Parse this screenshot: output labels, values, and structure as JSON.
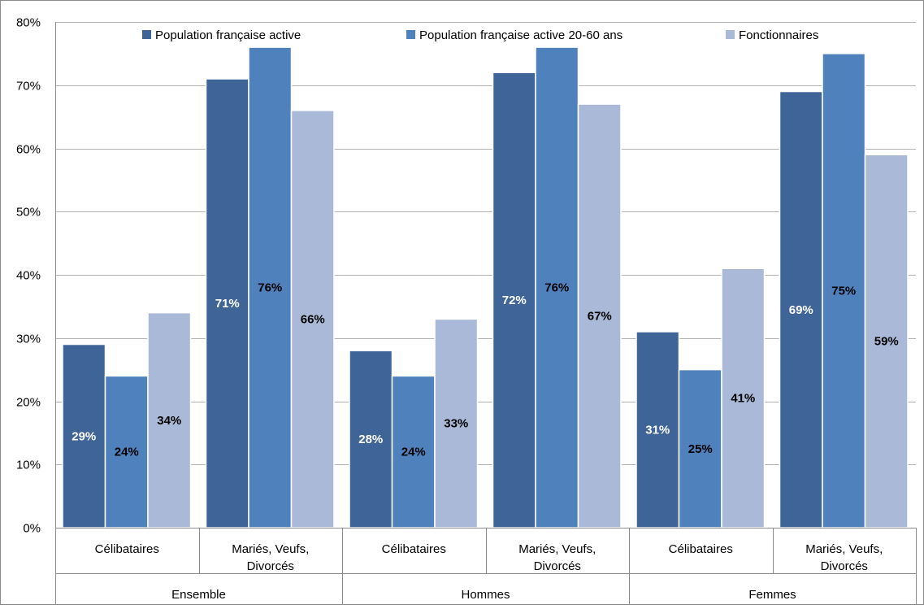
{
  "chart_data": {
    "type": "bar",
    "title": "",
    "xlabel": "",
    "ylabel": "",
    "ylim": [
      0,
      80
    ],
    "y_ticks": [
      "0%",
      "10%",
      "20%",
      "30%",
      "40%",
      "50%",
      "60%",
      "70%",
      "80%"
    ],
    "y_tick_values": [
      0,
      10,
      20,
      30,
      40,
      50,
      60,
      70,
      80
    ],
    "grid": true,
    "legend_position": "top",
    "groups": [
      {
        "label": "Ensemble",
        "categories": [
          "Célibataires",
          "Mariés, Veufs, Divorcés"
        ]
      },
      {
        "label": "Hommes",
        "categories": [
          "Célibataires",
          "Mariés, Veufs, Divorcés"
        ]
      },
      {
        "label": "Femmes",
        "categories": [
          "Célibataires",
          "Mariés, Veufs, Divorcés"
        ]
      }
    ],
    "categories": [
      "Célibataires",
      "Mariés, Veufs, Divorcés",
      "Célibataires",
      "Mariés, Veufs, Divorcés",
      "Célibataires",
      "Mariés, Veufs, Divorcés"
    ],
    "category_lines": [
      [
        "Célibataires"
      ],
      [
        "Mariés, Veufs,",
        "Divorcés"
      ],
      [
        "Célibataires"
      ],
      [
        "Mariés, Veufs,",
        "Divorcés"
      ],
      [
        "Célibataires"
      ],
      [
        "Mariés, Veufs,",
        "Divorcés"
      ]
    ],
    "series": [
      {
        "name": "Population française active",
        "color": "#3f6598",
        "label_color": "#ffffff",
        "values": [
          29,
          71,
          28,
          72,
          31,
          69
        ],
        "labels": [
          "29%",
          "71%",
          "28%",
          "72%",
          "31%",
          "69%"
        ]
      },
      {
        "name": "Population française active 20-60 ans",
        "color": "#4f81bd",
        "label_color": "#000000",
        "values": [
          24,
          76,
          24,
          76,
          25,
          75
        ],
        "labels": [
          "24%",
          "76%",
          "24%",
          "76%",
          "25%",
          "75%"
        ]
      },
      {
        "name": "Fonctionnaires",
        "color": "#aab9d7",
        "label_color": "#000000",
        "values": [
          34,
          66,
          33,
          67,
          41,
          59
        ],
        "labels": [
          "34%",
          "66%",
          "33%",
          "67%",
          "41%",
          "59%"
        ]
      }
    ]
  }
}
